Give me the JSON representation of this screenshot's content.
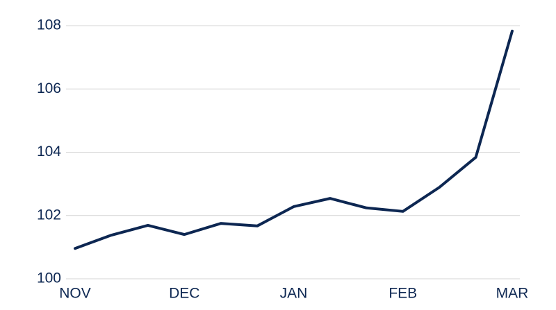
{
  "chart_data": {
    "type": "line",
    "categories": [
      "NOV",
      null,
      null,
      "DEC",
      null,
      null,
      "JAN",
      null,
      null,
      "FEB",
      null,
      null,
      "MAR"
    ],
    "values": [
      100.96,
      101.38,
      101.69,
      101.4,
      101.75,
      101.67,
      102.28,
      102.54,
      102.24,
      102.13,
      102.89,
      103.84,
      107.83
    ],
    "color": "#0d2752",
    "ylim": [
      100,
      108
    ],
    "yticks": [
      100,
      102,
      104,
      106,
      108
    ],
    "grid": true
  }
}
